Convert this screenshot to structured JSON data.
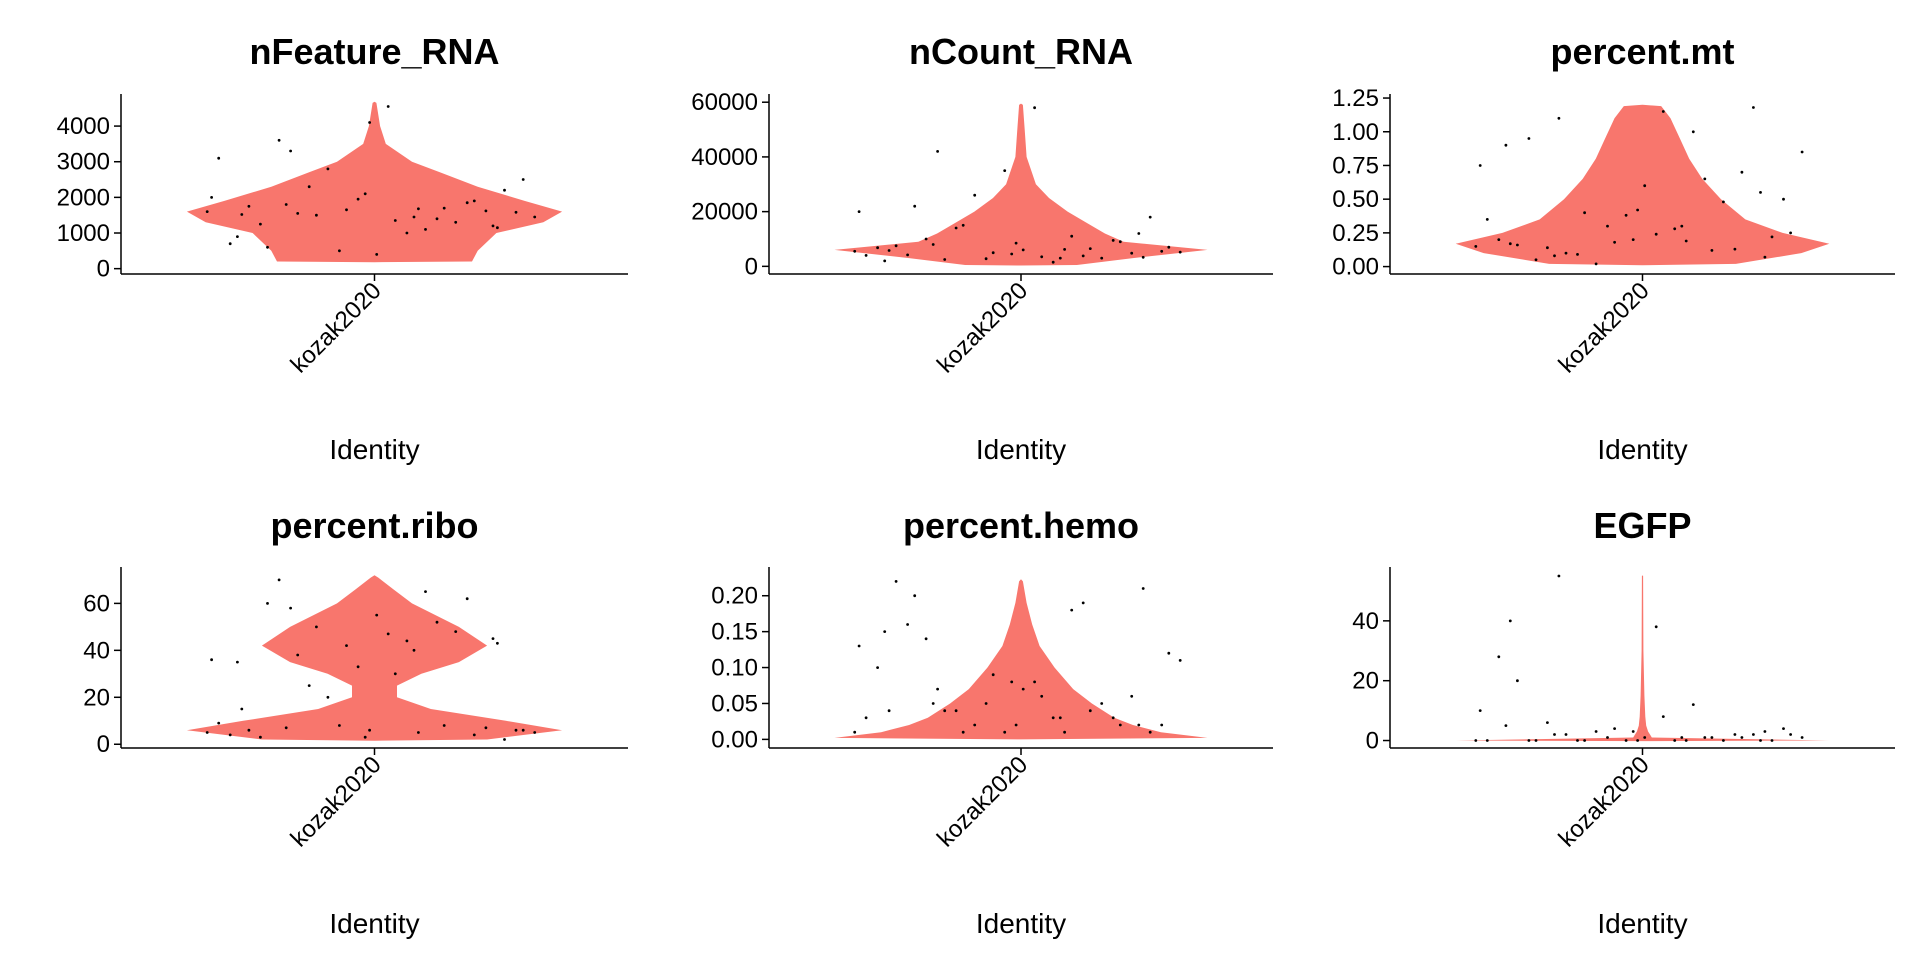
{
  "chart_data": [
    {
      "type": "violin",
      "title": "nFeature_RNA",
      "xlabel": "Identity",
      "categories": [
        "kozak2020"
      ],
      "color": "#f8766d",
      "ylim": [
        -150,
        4900
      ],
      "yticks": [
        0,
        1000,
        2000,
        3000,
        4000
      ],
      "violin_y": [
        180,
        200,
        500,
        1000,
        1300,
        1600,
        1900,
        2300,
        2700,
        3000,
        3500,
        4000,
        4650,
        4680
      ],
      "violin_width": [
        0,
        0.52,
        0.55,
        0.65,
        0.9,
        1.0,
        0.8,
        0.55,
        0.35,
        0.2,
        0.06,
        0.03,
        0.01,
        0
      ],
      "points": [
        1600,
        1450,
        1800,
        1200,
        2100,
        900,
        1700,
        1500,
        2500,
        1350,
        600,
        1900,
        1650,
        3100,
        1100,
        1550,
        2200,
        400,
        1750,
        1300,
        2800,
        1450,
        1000,
        3600,
        1620,
        1950,
        700,
        1400,
        2300,
        1580,
        4550,
        1250,
        1850,
        500,
        2000,
        1680,
        3300,
        1150,
        4100,
        1520
      ]
    },
    {
      "type": "violin",
      "title": "nCount_RNA",
      "xlabel": "Identity",
      "categories": [
        "kozak2020"
      ],
      "color": "#f8766d",
      "ylim": [
        -2800,
        63000
      ],
      "yticks": [
        0,
        20000,
        40000,
        60000
      ],
      "violin_y": [
        300,
        500,
        3000,
        6000,
        9000,
        12000,
        16000,
        20000,
        25000,
        30000,
        40000,
        50000,
        59000,
        59500
      ],
      "violin_width": [
        0,
        0.3,
        0.6,
        1.0,
        0.55,
        0.45,
        0.35,
        0.25,
        0.15,
        0.08,
        0.03,
        0.02,
        0.01,
        0
      ],
      "points": [
        5500,
        3000,
        8000,
        12000,
        4500,
        2000,
        6500,
        15000,
        7000,
        3500,
        22000,
        9000,
        5000,
        4000,
        11000,
        2500,
        18000,
        6000,
        7500,
        3000,
        26000,
        5200,
        1500,
        10000,
        4800,
        35000,
        6800,
        3800,
        14000,
        5500,
        58000,
        4200,
        9500,
        2800,
        20000,
        6200,
        42000,
        3300,
        8500,
        5800
      ]
    },
    {
      "type": "violin",
      "title": "percent.mt",
      "xlabel": "Identity",
      "categories": [
        "kozak2020"
      ],
      "color": "#f8766d",
      "ylim": [
        -0.055,
        1.28
      ],
      "yticks": [
        {
          "value": 0,
          "label": "0.00"
        },
        {
          "value": 0.25,
          "label": "0.25"
        },
        {
          "value": 0.5,
          "label": "0.50"
        },
        {
          "value": 0.75,
          "label": "0.75"
        },
        {
          "value": 1,
          "label": "1.00"
        },
        {
          "value": 1.25,
          "label": "1.25"
        }
      ],
      "violin_y": [
        0.01,
        0.02,
        0.1,
        0.17,
        0.25,
        0.35,
        0.5,
        0.65,
        0.8,
        0.95,
        1.1,
        1.19,
        1.2
      ],
      "violin_width": [
        0,
        0.5,
        0.85,
        1.0,
        0.75,
        0.55,
        0.42,
        0.32,
        0.25,
        0.2,
        0.15,
        0.1,
        0
      ],
      "points": [
        0.15,
        0.3,
        0.08,
        0.55,
        0.2,
        0.9,
        0.12,
        0.4,
        0.25,
        1.15,
        0.05,
        0.7,
        0.18,
        0.35,
        1.0,
        0.1,
        0.22,
        0.6,
        0.16,
        0.48,
        0.02,
        0.85,
        0.28,
        0.14,
        1.18,
        0.38,
        0.2,
        0.65,
        0.09,
        0.5,
        0.24,
        0.95,
        0.13,
        0.3,
        0.75,
        0.19,
        1.1,
        0.07,
        0.42,
        0.17
      ]
    },
    {
      "type": "violin",
      "title": "percent.ribo",
      "xlabel": "Identity",
      "categories": [
        "kozak2020"
      ],
      "color": "#f8766d",
      "ylim": [
        -1.6,
        75.5
      ],
      "yticks": [
        0,
        20,
        40,
        60
      ],
      "violin_y": [
        1.5,
        2,
        6,
        10,
        15,
        20,
        25,
        30,
        35,
        42,
        50,
        60,
        66,
        71,
        72
      ],
      "violin_width": [
        0,
        0.6,
        1.0,
        0.7,
        0.3,
        0.12,
        0.12,
        0.25,
        0.45,
        0.6,
        0.45,
        0.2,
        0.1,
        0.02,
        0
      ],
      "points": [
        5,
        40,
        7,
        45,
        3,
        35,
        8,
        50,
        6,
        30,
        60,
        4,
        42,
        9,
        65,
        38,
        2,
        55,
        6,
        48,
        20,
        5,
        44,
        70,
        7,
        33,
        4,
        52,
        25,
        6,
        47,
        3,
        62,
        8,
        36,
        5,
        58,
        43,
        6,
        15
      ]
    },
    {
      "type": "violin",
      "title": "percent.hemo",
      "xlabel": "Identity",
      "categories": [
        "kozak2020"
      ],
      "color": "#f8766d",
      "ylim": [
        -0.012,
        0.24
      ],
      "yticks": [
        {
          "value": 0,
          "label": "0.00"
        },
        {
          "value": 0.05,
          "label": "0.05"
        },
        {
          "value": 0.1,
          "label": "0.10"
        },
        {
          "value": 0.15,
          "label": "0.15"
        },
        {
          "value": 0.2,
          "label": "0.20"
        }
      ],
      "violin_y": [
        0,
        0.002,
        0.01,
        0.02,
        0.03,
        0.05,
        0.07,
        0.1,
        0.13,
        0.16,
        0.19,
        0.22,
        0.223
      ],
      "violin_width": [
        0,
        1.0,
        0.75,
        0.6,
        0.5,
        0.38,
        0.28,
        0.18,
        0.1,
        0.06,
        0.03,
        0.01,
        0
      ],
      "points": [
        0.01,
        0.03,
        0.05,
        0.02,
        0.08,
        0.15,
        0.04,
        0.01,
        0.12,
        0.06,
        0.2,
        0.02,
        0.09,
        0.03,
        0.18,
        0.04,
        0.01,
        0.07,
        0.22,
        0.05,
        0.02,
        0.11,
        0.03,
        0.14,
        0.06,
        0.01,
        0.1,
        0.19,
        0.04,
        0.02,
        0.08,
        0.16,
        0.03,
        0.05,
        0.13,
        0.01,
        0.07,
        0.21,
        0.02,
        0.04
      ]
    },
    {
      "type": "violin",
      "title": "EGFP",
      "xlabel": "Identity",
      "categories": [
        "kozak2020"
      ],
      "color": "#f8766d",
      "ylim": [
        -2.5,
        58
      ],
      "yticks": [
        0,
        20,
        40
      ],
      "violin_y": [
        -0.2,
        0,
        1,
        2,
        3,
        5,
        8,
        15,
        30,
        55,
        55.2
      ],
      "violin_width": [
        0,
        1.0,
        0.05,
        0.04,
        0.03,
        0.02,
        0.015,
        0.01,
        0.005,
        0.003,
        0
      ],
      "points": [
        0,
        1,
        2,
        0,
        3,
        5,
        1,
        0,
        2,
        8,
        0,
        1,
        4,
        0,
        12,
        2,
        0,
        1,
        20,
        0,
        3,
        1,
        0,
        6,
        2,
        0,
        28,
        1,
        0,
        4,
        38,
        0,
        2,
        1,
        10,
        0,
        55,
        3,
        0,
        40
      ]
    }
  ]
}
